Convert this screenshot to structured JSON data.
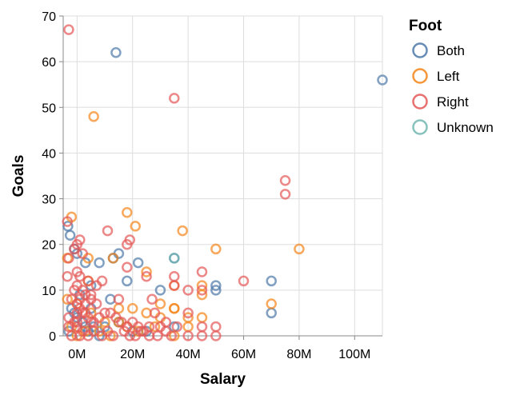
{
  "chart_data": {
    "type": "scatter",
    "xlabel": "Salary",
    "ylabel": "Goals",
    "xlim": [
      -5000000,
      110000000
    ],
    "ylim": [
      0,
      70
    ],
    "x_ticks": [
      {
        "value": 0,
        "label": "0M"
      },
      {
        "value": 20000000,
        "label": "20M"
      },
      {
        "value": 40000000,
        "label": "40M"
      },
      {
        "value": 60000000,
        "label": "60M"
      },
      {
        "value": 80000000,
        "label": "80M"
      },
      {
        "value": 100000000,
        "label": "100M"
      }
    ],
    "y_ticks": [
      {
        "value": 0,
        "label": "0"
      },
      {
        "value": 10,
        "label": "10"
      },
      {
        "value": 20,
        "label": "20"
      },
      {
        "value": 30,
        "label": "30"
      },
      {
        "value": 40,
        "label": "40"
      },
      {
        "value": 50,
        "label": "50"
      },
      {
        "value": 60,
        "label": "60"
      },
      {
        "value": 70,
        "label": "70"
      }
    ],
    "grid": true,
    "legend": {
      "title": "Foot",
      "position": "right"
    },
    "series": [
      {
        "name": "Both",
        "color": "#4c78a8",
        "points": [
          [
            -3300000,
            24
          ],
          [
            -2500000,
            22
          ],
          [
            14000000,
            62
          ],
          [
            110000000,
            56
          ],
          [
            13000000,
            17
          ],
          [
            15000000,
            18
          ],
          [
            18000000,
            12
          ],
          [
            22000000,
            16
          ],
          [
            30000000,
            10
          ],
          [
            35000000,
            17
          ],
          [
            50000000,
            11
          ],
          [
            50000000,
            10
          ],
          [
            70000000,
            12
          ],
          [
            70000000,
            5
          ],
          [
            35000000,
            2
          ],
          [
            -1000000,
            19
          ],
          [
            0,
            18
          ],
          [
            3000000,
            16
          ],
          [
            5000000,
            11
          ],
          [
            8000000,
            16
          ],
          [
            12000000,
            8
          ],
          [
            -2000000,
            6
          ],
          [
            0,
            4
          ],
          [
            2000000,
            3
          ],
          [
            3000000,
            2
          ],
          [
            1000000,
            9
          ],
          [
            5000000,
            6
          ],
          [
            10000000,
            2
          ],
          [
            15000000,
            3
          ],
          [
            20000000,
            1
          ],
          [
            25000000,
            1
          ],
          [
            -3000000,
            1
          ],
          [
            -1000000,
            5
          ],
          [
            4000000,
            1
          ],
          [
            6000000,
            2
          ],
          [
            8000000,
            0
          ]
        ]
      },
      {
        "name": "Left",
        "color": "#f58518",
        "points": [
          [
            -2000000,
            26
          ],
          [
            -3500000,
            17
          ],
          [
            4000000,
            17
          ],
          [
            4000000,
            12
          ],
          [
            -3500000,
            8
          ],
          [
            6000000,
            48
          ],
          [
            18000000,
            27
          ],
          [
            21000000,
            24
          ],
          [
            38000000,
            23
          ],
          [
            50000000,
            19
          ],
          [
            80000000,
            19
          ],
          [
            13000000,
            17
          ],
          [
            25000000,
            14
          ],
          [
            35000000,
            11
          ],
          [
            45000000,
            11
          ],
          [
            35000000,
            6
          ],
          [
            45000000,
            9
          ],
          [
            70000000,
            7
          ],
          [
            30000000,
            7
          ],
          [
            35000000,
            6
          ],
          [
            15000000,
            6
          ],
          [
            20000000,
            6
          ],
          [
            25000000,
            5
          ],
          [
            30000000,
            4
          ],
          [
            40000000,
            4
          ],
          [
            0,
            7
          ],
          [
            5000000,
            5
          ],
          [
            10000000,
            3
          ],
          [
            15000000,
            3
          ],
          [
            18000000,
            2
          ],
          [
            22000000,
            1
          ],
          [
            28000000,
            2
          ],
          [
            -2000000,
            2
          ],
          [
            0,
            0
          ],
          [
            3000000,
            1
          ],
          [
            8000000,
            1
          ],
          [
            12000000,
            0
          ],
          [
            35000000,
            0
          ],
          [
            40000000,
            2
          ],
          [
            45000000,
            4
          ]
        ]
      },
      {
        "name": "Right",
        "color": "#e45756",
        "points": [
          [
            -3000000,
            67
          ],
          [
            35000000,
            52
          ],
          [
            75000000,
            34
          ],
          [
            75000000,
            31
          ],
          [
            -3500000,
            25
          ],
          [
            1000000,
            21
          ],
          [
            11000000,
            23
          ],
          [
            19000000,
            21
          ],
          [
            18000000,
            20
          ],
          [
            0,
            20
          ],
          [
            -1000000,
            19
          ],
          [
            -3000000,
            17
          ],
          [
            2000000,
            18
          ],
          [
            18000000,
            15
          ],
          [
            0,
            14
          ],
          [
            1000000,
            13
          ],
          [
            -3500000,
            13
          ],
          [
            4000000,
            12
          ],
          [
            7000000,
            11
          ],
          [
            9000000,
            12
          ],
          [
            25000000,
            13
          ],
          [
            35000000,
            13
          ],
          [
            45000000,
            14
          ],
          [
            60000000,
            12
          ],
          [
            35000000,
            11
          ],
          [
            45000000,
            10
          ],
          [
            40000000,
            10
          ],
          [
            -1000000,
            10
          ],
          [
            0,
            11
          ],
          [
            2000000,
            10
          ],
          [
            3000000,
            9
          ],
          [
            5000000,
            8
          ],
          [
            7000000,
            7
          ],
          [
            15000000,
            8
          ],
          [
            27000000,
            8
          ],
          [
            -2000000,
            8
          ],
          [
            0,
            7
          ],
          [
            1000000,
            6
          ],
          [
            2000000,
            5
          ],
          [
            3000000,
            5
          ],
          [
            4000000,
            4
          ],
          [
            5000000,
            3
          ],
          [
            6000000,
            3
          ],
          [
            8000000,
            4
          ],
          [
            10000000,
            5
          ],
          [
            12000000,
            5
          ],
          [
            14000000,
            4
          ],
          [
            16000000,
            3
          ],
          [
            18000000,
            2
          ],
          [
            20000000,
            3
          ],
          [
            22000000,
            2
          ],
          [
            24000000,
            1
          ],
          [
            26000000,
            2
          ],
          [
            28000000,
            5
          ],
          [
            30000000,
            2
          ],
          [
            32000000,
            3
          ],
          [
            36000000,
            2
          ],
          [
            40000000,
            5
          ],
          [
            45000000,
            2
          ],
          [
            50000000,
            2
          ],
          [
            45000000,
            0
          ],
          [
            50000000,
            0
          ],
          [
            40000000,
            0
          ],
          [
            -3000000,
            4
          ],
          [
            -3000000,
            2
          ],
          [
            -2000000,
            0
          ],
          [
            0,
            2
          ],
          [
            1000000,
            0
          ],
          [
            2000000,
            1
          ],
          [
            4000000,
            0
          ],
          [
            6000000,
            1
          ],
          [
            9000000,
            0
          ],
          [
            11000000,
            1
          ],
          [
            13000000,
            0
          ],
          [
            17000000,
            1
          ],
          [
            19000000,
            0
          ],
          [
            21000000,
            0
          ],
          [
            23000000,
            1
          ],
          [
            26000000,
            0
          ],
          [
            29000000,
            0
          ],
          [
            32000000,
            1
          ],
          [
            34000000,
            0
          ],
          [
            -1000000,
            3
          ],
          [
            0,
            5
          ],
          [
            3000000,
            7
          ],
          [
            5000000,
            9
          ],
          [
            1000000,
            8
          ],
          [
            0,
            3
          ]
        ]
      },
      {
        "name": "Unknown",
        "color": "#72b7b2",
        "points": [
          [
            35000000,
            17
          ]
        ]
      }
    ]
  }
}
